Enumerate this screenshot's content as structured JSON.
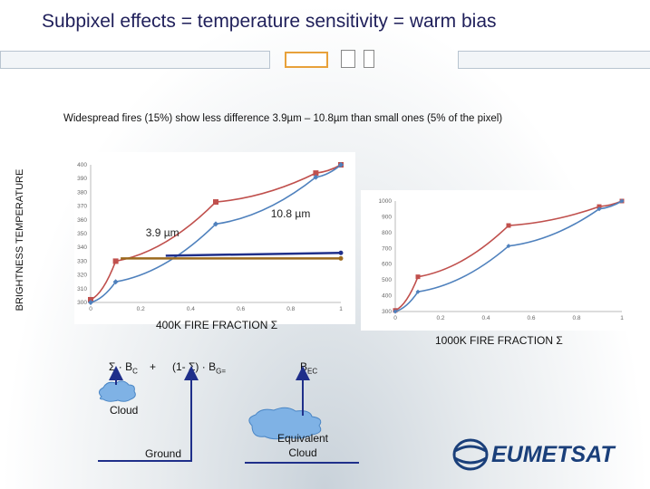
{
  "slide": {
    "title": "Subpixel effects = temperature sensitivity = warm bias",
    "subtitle": "Widespread fires (15%) show less difference 3.9µm – 10.8µm than small ones (5% of the pixel)",
    "ylabel": "BRIGHTNESS TEMPERATURE"
  },
  "colors": {
    "red": "#c0504d",
    "blue": "#4f81bd",
    "olive": "#9b6a1e",
    "navy": "#1f2f8a",
    "brand": "#1a3f7a"
  },
  "chart_data": [
    {
      "type": "line",
      "xlabel": "400K FIRE FRACTION  Σ",
      "x_ticks": [
        "0",
        "0.2",
        "0.4",
        "0.6",
        "0.8",
        "1"
      ],
      "y_ticks": [
        "300",
        "310",
        "320",
        "330",
        "340",
        "350",
        "360",
        "370",
        "380",
        "390",
        "400"
      ],
      "xlim": [
        0,
        1
      ],
      "ylim": [
        300,
        400
      ],
      "annotations": [
        "3.9 µm",
        "10.8 µm"
      ],
      "series": [
        {
          "color": "red",
          "x": [
            0,
            0.1,
            0.5,
            0.9,
            1
          ],
          "y": [
            302,
            330,
            373,
            394,
            400
          ]
        },
        {
          "color": "blue",
          "x": [
            0,
            0.1,
            0.5,
            0.9,
            1
          ],
          "y": [
            300,
            315,
            357,
            391,
            400
          ]
        },
        {
          "color": "olive",
          "x": [
            0.12,
            1
          ],
          "y": [
            332,
            332
          ]
        },
        {
          "color": "navy",
          "x": [
            0.3,
            1
          ],
          "y": [
            334,
            336
          ]
        }
      ]
    },
    {
      "type": "line",
      "xlabel": "1000K FIRE FRACTION  Σ",
      "x_ticks": [
        "0",
        "0.2",
        "0.4",
        "0.6",
        "0.8",
        "1"
      ],
      "y_ticks": [
        "300",
        "400",
        "500",
        "600",
        "700",
        "800",
        "900",
        "1000"
      ],
      "xlim": [
        0,
        1
      ],
      "ylim": [
        300,
        1000
      ],
      "series": [
        {
          "color": "red",
          "x": [
            0,
            0.1,
            0.5,
            0.9,
            1
          ],
          "y": [
            307,
            520,
            845,
            965,
            1000
          ]
        },
        {
          "color": "blue",
          "x": [
            0,
            0.1,
            0.5,
            0.9,
            1
          ],
          "y": [
            300,
            425,
            715,
            950,
            1000
          ]
        }
      ]
    }
  ],
  "equation": {
    "sigma_bc": "Σ · B",
    "sub_c": "C",
    "plus": "+",
    "rest": "(1- Σ) · B",
    "sub_g_eq": "G=",
    "bec": "B",
    "sub_ec": "EC"
  },
  "labels": {
    "cloud": "Cloud",
    "ground": "Ground",
    "equivalent_cloud": "Equivalent Cloud"
  },
  "logo": {
    "text": "EUMETSAT"
  }
}
